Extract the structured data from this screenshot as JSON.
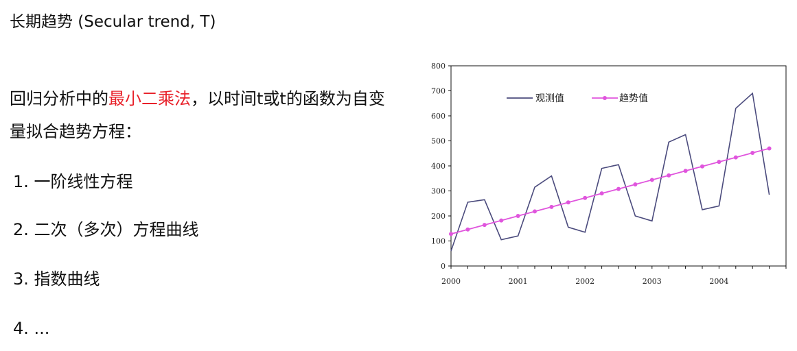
{
  "heading": "长期趋势 (Secular trend, T)",
  "intro": {
    "part1": "回归分析中的",
    "highlight": "最小二乘法",
    "part2": "，以时间t或t的函数为自变量拟合趋势方程："
  },
  "list": [
    {
      "num": "1.",
      "text": "一阶线性方程"
    },
    {
      "num": "2.",
      "text": "二次（多次）方程曲线"
    },
    {
      "num": "3.",
      "text": "指数曲线"
    },
    {
      "num": "4.",
      "text": "..."
    }
  ],
  "colors": {
    "highlight": "#e8212a",
    "observed": "#4b4b7d",
    "trend": "#e055dd"
  },
  "chart_data": {
    "type": "line",
    "ylim": [
      0,
      800
    ],
    "yticks": [
      "0",
      "100",
      "200",
      "300",
      "400",
      "500",
      "600",
      "700",
      "800"
    ],
    "xticks": [
      "2000",
      "2001",
      "2002",
      "2003",
      "2004"
    ],
    "x_per_year": 4,
    "legend_position": "top-left",
    "grid": false,
    "series": [
      {
        "name": "观测值",
        "marker": false,
        "values": [
          60,
          255,
          265,
          105,
          120,
          315,
          360,
          155,
          135,
          390,
          405,
          200,
          180,
          495,
          525,
          225,
          240,
          630,
          690,
          285
        ]
      },
      {
        "name": "趋势值",
        "marker": true,
        "values": [
          128,
          146,
          164,
          182,
          200,
          218,
          236,
          254,
          272,
          290,
          308,
          326,
          344,
          362,
          380,
          398,
          416,
          434,
          452,
          470
        ]
      }
    ]
  }
}
